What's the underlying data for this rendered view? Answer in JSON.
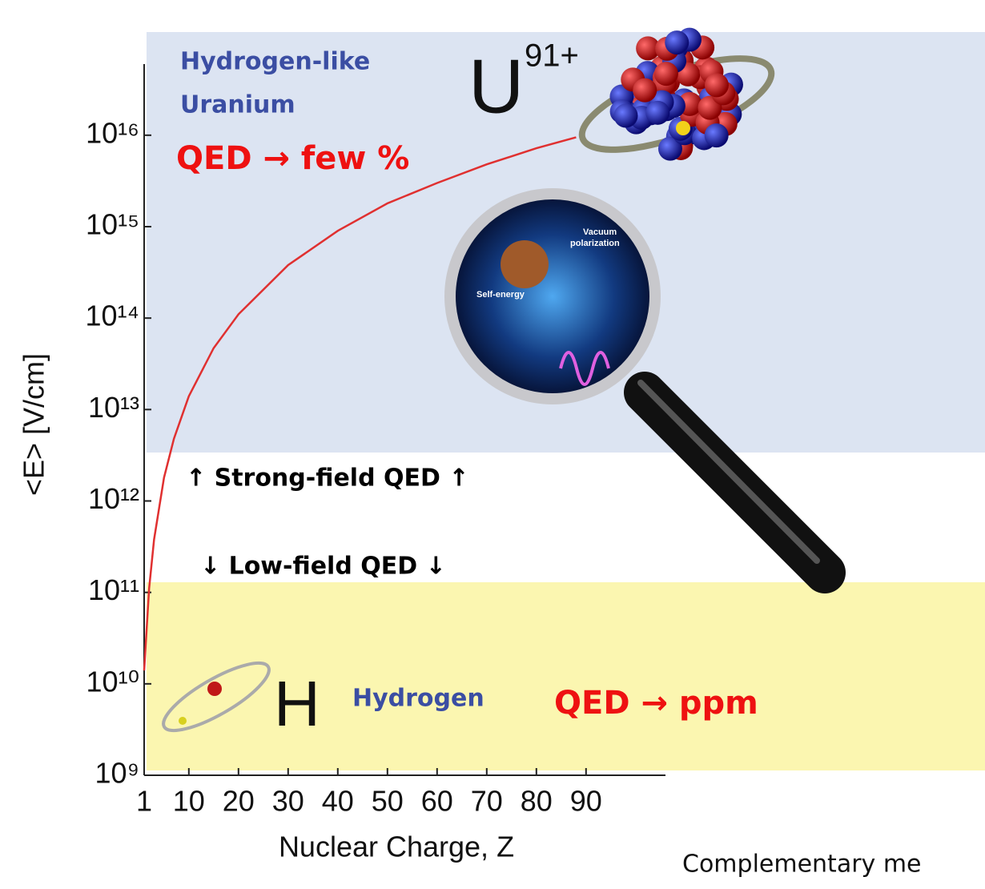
{
  "chart_data": {
    "type": "line",
    "x_label": "Nuclear Charge, Z",
    "y_label": "<E>  [V/cm]",
    "x": [
      1,
      2,
      3,
      5,
      7,
      10,
      15,
      20,
      30,
      40,
      50,
      60,
      70,
      80,
      88
    ],
    "values": [
      14000000000.0,
      110000000000.0,
      380000000000.0,
      1800000000000.0,
      4800000000000.0,
      14000000000000.0,
      47000000000000.0,
      110000000000000.0,
      380000000000000.0,
      900000000000000.0,
      1800000000000000.0,
      3000000000000000.0,
      4800000000000000.0,
      7200000000000000.0,
      9500000000000000.0
    ],
    "color": "#e03030",
    "xlim": [
      1,
      106
    ],
    "xticks": [
      1,
      10,
      20,
      30,
      40,
      50,
      60,
      70,
      80,
      90
    ],
    "ylim": [
      1000000000.0,
      6e+16
    ],
    "log_y": true,
    "yticks": [
      {
        "value": 1000000000.0,
        "label": "10⁹"
      },
      {
        "value": 10000000000.0,
        "label": "10¹⁰"
      },
      {
        "value": 100000000000.0,
        "label": "10¹¹"
      },
      {
        "value": 1000000000000.0,
        "label": "10¹²"
      },
      {
        "value": 10000000000000.0,
        "label": "10¹³"
      },
      {
        "value": 100000000000000.0,
        "label": "10¹⁴"
      },
      {
        "value": 1000000000000000.0,
        "label": "10¹⁵"
      },
      {
        "value": 1e+16,
        "label": "10¹⁶"
      }
    ],
    "annotations": {
      "hydrogen_like": "Hydrogen-like",
      "uranium": "Uranium",
      "qed_few": "QED → few %",
      "u_symbol": "U",
      "u_charge": "91+",
      "strong_field": "↑ Strong-field QED ↑",
      "low_field": "↓ Low-field QED ↓",
      "h_symbol": "H",
      "hydrogen": "Hydrogen",
      "qed_ppm": "QED → ppm",
      "complementary": "Complementary me",
      "vacuum": "Vacuum",
      "polarization": "polarization",
      "self_energy": "Self-energy"
    }
  }
}
